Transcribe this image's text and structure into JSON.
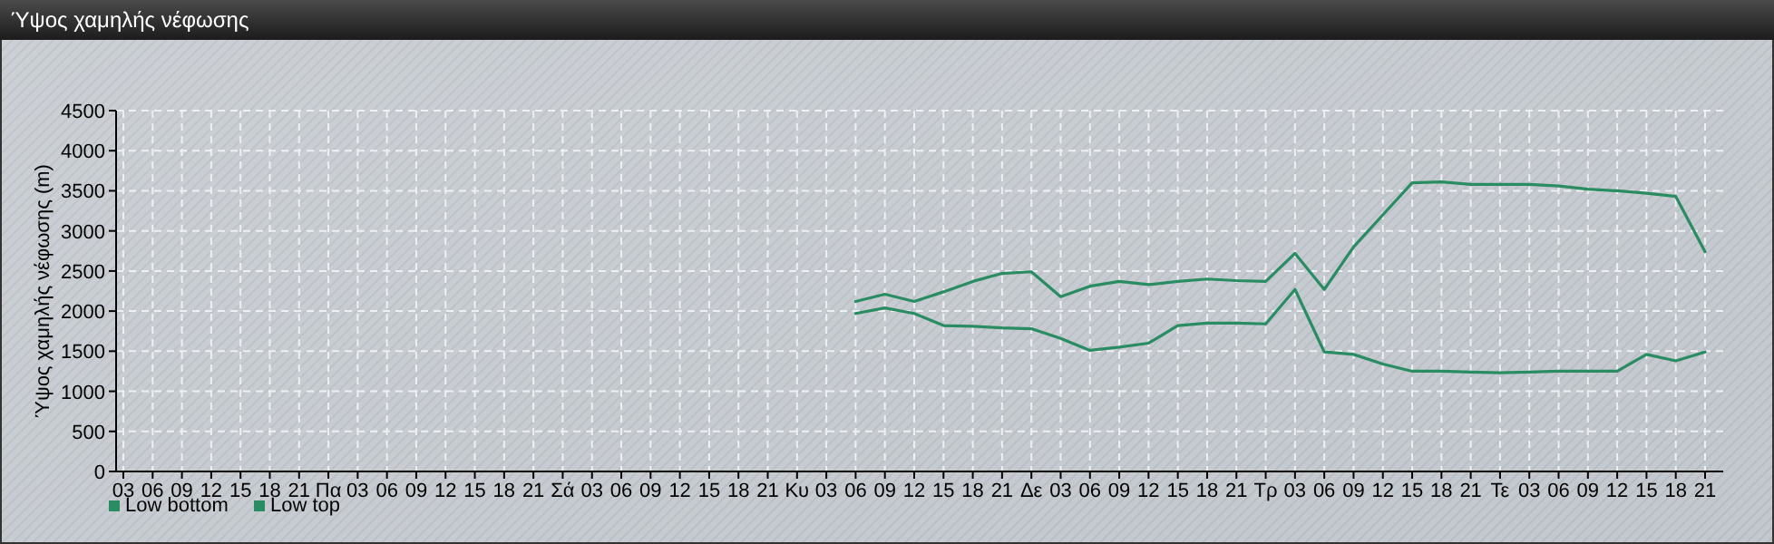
{
  "chart_data": {
    "type": "line",
    "title": "Ύψος χαμηλής νέφωσης",
    "ylabel": "Ύψος χαμηλής νέφωσης (m)",
    "categories": [
      "03",
      "06",
      "09",
      "12",
      "15",
      "18",
      "21",
      "Πα",
      "03",
      "06",
      "09",
      "12",
      "15",
      "18",
      "21",
      "Σά",
      "03",
      "06",
      "09",
      "12",
      "15",
      "18",
      "21",
      "Κυ",
      "03",
      "06",
      "09",
      "12",
      "15",
      "18",
      "21",
      "Δε",
      "03",
      "06",
      "09",
      "12",
      "15",
      "18",
      "21",
      "Τρ",
      "03",
      "06",
      "09",
      "12",
      "15",
      "18",
      "21",
      "Τε",
      "03",
      "06",
      "09",
      "12",
      "15",
      "18",
      "21"
    ],
    "series": [
      {
        "name": "Low bottom",
        "color": "#2a8c62",
        "values": [
          null,
          null,
          null,
          null,
          null,
          null,
          null,
          null,
          null,
          null,
          null,
          null,
          null,
          null,
          null,
          null,
          null,
          null,
          null,
          null,
          null,
          null,
          null,
          null,
          null,
          1970,
          2040,
          1970,
          1820,
          1810,
          1790,
          1780,
          1660,
          1510,
          1550,
          1600,
          1820,
          1850,
          1850,
          1840,
          2270,
          1490,
          1460,
          1340,
          1250,
          1250,
          1240,
          1230,
          1240,
          1250,
          1250,
          1250,
          1460,
          1380,
          1490
        ]
      },
      {
        "name": "Low top",
        "color": "#2a8c62",
        "values": [
          null,
          null,
          null,
          null,
          null,
          null,
          null,
          null,
          null,
          null,
          null,
          null,
          null,
          null,
          null,
          null,
          null,
          null,
          null,
          null,
          null,
          null,
          null,
          null,
          null,
          2120,
          2210,
          2120,
          2240,
          2370,
          2470,
          2490,
          2180,
          2310,
          2370,
          2330,
          2370,
          2400,
          2380,
          2370,
          2720,
          2270,
          2800,
          3200,
          3600,
          3610,
          3580,
          3580,
          3580,
          3560,
          3520,
          3500,
          3470,
          3430,
          2740
        ]
      }
    ],
    "ylim": [
      0,
      4500
    ],
    "yticks": [
      0,
      500,
      1000,
      1500,
      2000,
      2500,
      3000,
      3500,
      4000,
      4500
    ],
    "grid": true,
    "legend": "bottom left"
  }
}
